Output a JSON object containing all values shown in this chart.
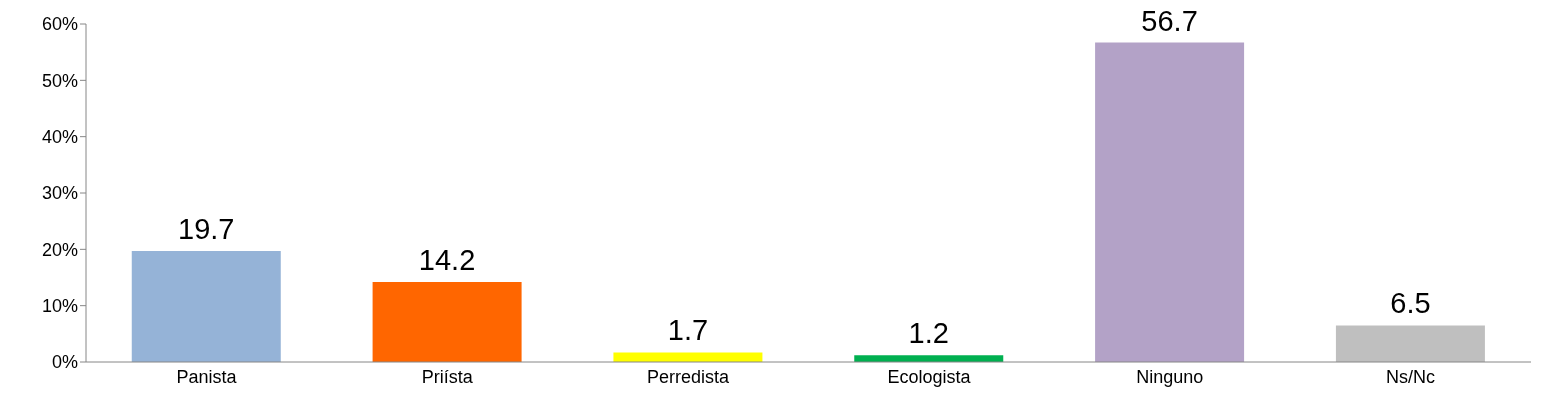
{
  "chart_data": {
    "type": "bar",
    "categories": [
      "Panista",
      "Priísta",
      "Perredista",
      "Ecologista",
      "Ninguno",
      "Ns/Nc"
    ],
    "values": [
      19.7,
      14.2,
      1.7,
      1.2,
      56.7,
      6.5
    ],
    "colors": [
      "#95b3d7",
      "#ff6600",
      "#ffff00",
      "#00b050",
      "#b3a2c7",
      "#bfbfbf"
    ],
    "ylim": [
      0,
      60
    ],
    "yticks": [
      {
        "value": 0,
        "label": "0%"
      },
      {
        "value": 10,
        "label": "10%"
      },
      {
        "value": 20,
        "label": "20%"
      },
      {
        "value": 30,
        "label": "30%"
      },
      {
        "value": 40,
        "label": "40%"
      },
      {
        "value": 50,
        "label": "50%"
      },
      {
        "value": 60,
        "label": "60%"
      }
    ],
    "data_labels": true
  }
}
